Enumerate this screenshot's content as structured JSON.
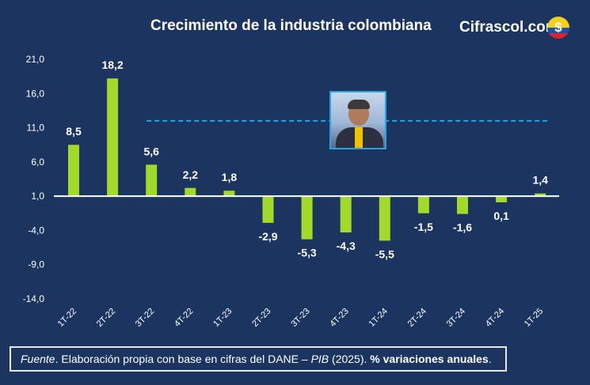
{
  "title": "Crecimiento de la industria colombiana",
  "brand": {
    "name": "Cifrascol.com",
    "icon": "dollar-sign-icon",
    "icon_glyph": "$"
  },
  "footer": {
    "fuente": "Fuente",
    "text1": ". Elaboración propia con base en cifras del DANE – ",
    "pib": "PIB",
    "text2": " (2025). ",
    "bold": "% variaciones anuales",
    "end": "."
  },
  "colors": {
    "background": "#1b3560",
    "bar": "#a3d929",
    "reference_line": "#1fa7e8",
    "text": "#ffffff"
  },
  "chart_data": {
    "type": "bar",
    "categories": [
      "1T-22",
      "2T-22",
      "3T-22",
      "4T-22",
      "1T-23",
      "2T-23",
      "3T-23",
      "4T-23",
      "1T-24",
      "2T-24",
      "3T-24",
      "4T-24",
      "1T-25"
    ],
    "values": [
      8.5,
      18.2,
      5.6,
      2.2,
      1.8,
      -2.9,
      -5.3,
      -4.3,
      -5.5,
      -1.5,
      -1.6,
      0.1,
      1.4
    ],
    "value_labels": [
      "8,5",
      "18,2",
      "5,6",
      "2,2",
      "1,8",
      "-2,9",
      "-5,3",
      "-4,3",
      "-5,5",
      "-1,5",
      "-1,6",
      "0,1",
      "1,4"
    ],
    "yticks": [
      "21,0",
      "16,0",
      "11,0",
      "6,0",
      "1,0",
      "-4,0",
      "-9,0",
      "-14,0"
    ],
    "ytick_values": [
      21,
      16,
      11,
      6,
      1,
      -4,
      -9,
      -14
    ],
    "ylim": [
      -14,
      21
    ],
    "baseline": 1,
    "reference_line": {
      "y": 12,
      "style": "dashed",
      "start_category": 2
    },
    "grid": false,
    "legend": "none",
    "xlabel": "",
    "ylabel": ""
  }
}
